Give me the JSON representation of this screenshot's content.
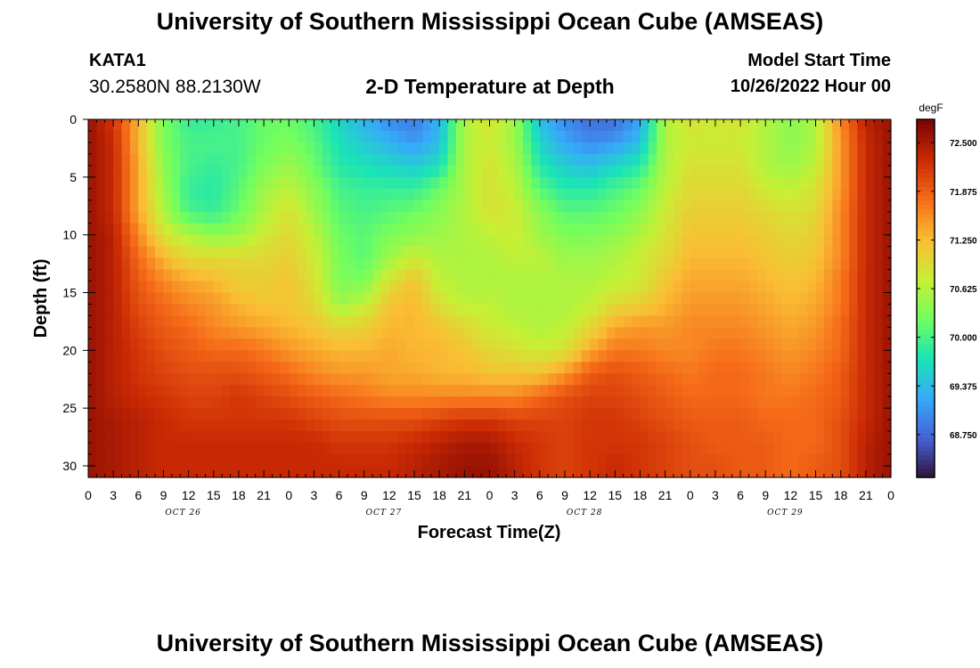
{
  "header": {
    "title": "University of Southern Mississippi Ocean Cube (AMSEAS)",
    "station_id": "KATA1",
    "station_coords": "30.2580N  88.2130W",
    "chart_title": "2-D Temperature at Depth",
    "model_start_label": "Model Start Time",
    "model_start_time": "10/26/2022 Hour 00"
  },
  "footer": {
    "title": "University of Southern Mississippi Ocean Cube (AMSEAS)"
  },
  "chart_data": {
    "type": "heatmap",
    "title": "2-D Temperature at Depth",
    "xlabel": "Forecast Time(Z)",
    "ylabel": "Depth (ft)",
    "colorbar_unit": "degF",
    "xlim": [
      0,
      96
    ],
    "ylim": [
      31,
      0
    ],
    "x_tick_values": [
      0,
      3,
      6,
      9,
      12,
      15,
      18,
      21,
      24,
      27,
      30,
      33,
      36,
      39,
      42,
      45,
      48,
      51,
      54,
      57,
      60,
      63,
      66,
      69,
      72,
      75,
      78,
      81,
      84,
      87,
      90,
      93,
      96
    ],
    "x_tick_labels": [
      "0",
      "3",
      "6",
      "9",
      "12",
      "15",
      "18",
      "21",
      "0",
      "3",
      "6",
      "9",
      "12",
      "15",
      "18",
      "21",
      "0",
      "3",
      "6",
      "9",
      "12",
      "15",
      "18",
      "21",
      "0",
      "3",
      "6",
      "9",
      "12",
      "15",
      "18",
      "21",
      "0"
    ],
    "day_labels": [
      {
        "label": "OCT 26",
        "hour": 12
      },
      {
        "label": "OCT 27",
        "hour": 36
      },
      {
        "label": "OCT 28",
        "hour": 60
      },
      {
        "label": "OCT 29",
        "hour": 84
      }
    ],
    "y_ticks": [
      0,
      5,
      10,
      15,
      20,
      25,
      30
    ],
    "colorbar_min": 68.2,
    "colorbar_max": 72.8,
    "colorbar_ticks": [
      "72.500",
      "71.875",
      "71.250",
      "70.625",
      "70.000",
      "69.375",
      "68.750"
    ],
    "colorbar_tick_values": [
      72.5,
      71.875,
      71.25,
      70.625,
      70.0,
      69.375,
      68.75
    ],
    "colormap_stops": [
      "#30123b",
      "#4662d7",
      "#36aaf9",
      "#1ae4b6",
      "#72fe5e",
      "#c8ef34",
      "#fabd34",
      "#f66b19",
      "#ca2a04",
      "#7a0403"
    ],
    "depths": [
      0,
      2,
      4,
      6,
      8,
      10,
      12,
      14,
      16,
      18,
      20,
      22,
      24,
      26,
      28,
      30,
      31
    ],
    "hours": [
      0,
      3,
      6,
      9,
      12,
      15,
      18,
      21,
      24,
      27,
      30,
      33,
      36,
      39,
      42,
      45,
      48,
      51,
      54,
      57,
      60,
      63,
      66,
      69,
      72,
      75,
      78,
      81,
      84,
      87,
      90,
      93,
      96
    ],
    "values": [
      [
        72.6,
        72.2,
        71.3,
        70.3,
        69.9,
        69.9,
        70.0,
        70.2,
        70.2,
        70.0,
        69.6,
        69.3,
        69.0,
        68.9,
        69.3,
        70.6,
        70.9,
        70.5,
        69.4,
        69.0,
        68.8,
        68.8,
        69.2,
        70.6,
        70.9,
        70.8,
        70.9,
        70.6,
        70.4,
        70.6,
        71.6,
        72.4,
        72.6
      ],
      [
        72.6,
        72.3,
        71.3,
        70.3,
        70.0,
        70.0,
        70.0,
        70.2,
        70.3,
        70.1,
        69.7,
        69.5,
        69.3,
        69.1,
        69.4,
        70.6,
        70.8,
        70.5,
        69.6,
        69.2,
        69.0,
        69.1,
        69.4,
        70.6,
        70.8,
        70.8,
        70.8,
        70.6,
        70.4,
        70.6,
        71.5,
        72.3,
        72.6
      ],
      [
        72.6,
        72.3,
        71.4,
        70.4,
        70.0,
        69.9,
        70.0,
        70.3,
        70.5,
        70.2,
        69.8,
        69.7,
        69.6,
        69.5,
        69.7,
        70.6,
        70.9,
        70.6,
        69.8,
        69.5,
        69.4,
        69.6,
        69.8,
        70.6,
        70.9,
        70.9,
        70.9,
        70.6,
        70.5,
        70.7,
        71.5,
        72.3,
        72.6
      ],
      [
        72.6,
        72.3,
        71.4,
        70.5,
        69.9,
        69.8,
        70.1,
        70.5,
        70.7,
        70.4,
        70.0,
        69.9,
        69.9,
        69.9,
        70.2,
        70.6,
        70.9,
        70.7,
        70.1,
        69.8,
        69.8,
        70.0,
        70.2,
        70.7,
        71.0,
        71.0,
        71.0,
        70.8,
        70.7,
        70.9,
        71.5,
        72.3,
        72.6
      ],
      [
        72.6,
        72.3,
        71.4,
        70.6,
        70.0,
        69.9,
        70.2,
        70.6,
        70.9,
        70.5,
        70.1,
        70.0,
        70.1,
        70.2,
        70.4,
        70.6,
        70.9,
        70.8,
        70.4,
        70.1,
        70.1,
        70.2,
        70.4,
        70.8,
        71.1,
        71.1,
        71.1,
        71.0,
        70.9,
        71.0,
        71.6,
        72.3,
        72.6
      ],
      [
        72.6,
        72.4,
        71.6,
        70.9,
        70.6,
        70.4,
        70.5,
        70.8,
        71.0,
        70.7,
        70.2,
        70.1,
        70.3,
        70.4,
        70.5,
        70.6,
        70.7,
        70.8,
        70.5,
        70.3,
        70.3,
        70.4,
        70.6,
        70.9,
        71.2,
        71.2,
        71.2,
        71.1,
        71.0,
        71.1,
        71.6,
        72.3,
        72.6
      ],
      [
        72.6,
        72.4,
        71.8,
        71.3,
        71.0,
        71.0,
        71.0,
        71.0,
        71.1,
        70.8,
        70.3,
        70.1,
        70.5,
        70.8,
        70.6,
        70.6,
        70.6,
        70.7,
        70.7,
        70.5,
        70.5,
        70.6,
        70.8,
        71.0,
        71.3,
        71.3,
        71.3,
        71.2,
        71.1,
        71.2,
        71.6,
        72.3,
        72.6
      ],
      [
        72.6,
        72.4,
        71.9,
        71.6,
        71.4,
        71.3,
        71.1,
        71.1,
        71.2,
        70.9,
        70.3,
        70.3,
        70.9,
        71.2,
        70.7,
        70.6,
        70.6,
        70.6,
        70.6,
        70.6,
        70.6,
        70.7,
        70.8,
        71.2,
        71.4,
        71.4,
        71.4,
        71.3,
        71.2,
        71.3,
        71.7,
        72.3,
        72.6
      ],
      [
        72.6,
        72.4,
        72.0,
        71.8,
        71.6,
        71.5,
        71.3,
        71.2,
        71.2,
        71.0,
        70.5,
        70.7,
        71.2,
        71.3,
        70.9,
        70.7,
        70.7,
        70.6,
        70.6,
        70.6,
        70.7,
        71.0,
        71.1,
        71.3,
        71.5,
        71.5,
        71.5,
        71.4,
        71.3,
        71.4,
        71.7,
        72.3,
        72.6
      ],
      [
        72.6,
        72.4,
        72.1,
        71.9,
        71.8,
        71.6,
        71.5,
        71.4,
        71.3,
        71.2,
        71.0,
        71.1,
        71.3,
        71.3,
        71.2,
        71.0,
        70.8,
        70.7,
        70.6,
        70.7,
        71.0,
        71.4,
        71.5,
        71.5,
        71.6,
        71.6,
        71.6,
        71.5,
        71.4,
        71.5,
        71.8,
        72.3,
        72.6
      ],
      [
        72.6,
        72.4,
        72.2,
        72.0,
        71.9,
        71.8,
        71.8,
        71.7,
        71.5,
        71.4,
        71.3,
        71.3,
        71.4,
        71.3,
        71.3,
        71.2,
        71.0,
        70.9,
        70.8,
        70.9,
        71.4,
        71.7,
        71.7,
        71.6,
        71.6,
        71.7,
        71.7,
        71.6,
        71.5,
        71.6,
        71.8,
        72.3,
        72.6
      ],
      [
        72.6,
        72.4,
        72.2,
        72.1,
        72.0,
        72.0,
        72.0,
        71.9,
        71.8,
        71.6,
        71.5,
        71.5,
        71.4,
        71.4,
        71.3,
        71.3,
        71.2,
        71.2,
        71.2,
        71.5,
        71.9,
        72.0,
        71.9,
        71.8,
        71.7,
        71.8,
        71.8,
        71.7,
        71.6,
        71.7,
        71.9,
        72.3,
        72.6
      ],
      [
        72.6,
        72.4,
        72.3,
        72.2,
        72.1,
        72.1,
        72.2,
        72.1,
        72.0,
        71.9,
        71.8,
        71.7,
        71.6,
        71.6,
        71.6,
        71.6,
        71.6,
        71.6,
        71.8,
        72.0,
        72.1,
        72.1,
        72.0,
        71.9,
        71.8,
        71.8,
        71.8,
        71.7,
        71.7,
        71.8,
        71.9,
        72.3,
        72.6
      ],
      [
        72.6,
        72.5,
        72.4,
        72.3,
        72.2,
        72.2,
        72.2,
        72.2,
        72.2,
        72.1,
        72.0,
        72.0,
        72.0,
        72.0,
        72.1,
        72.2,
        72.2,
        72.1,
        72.1,
        72.1,
        72.2,
        72.2,
        72.1,
        72.0,
        71.9,
        71.9,
        71.9,
        71.8,
        71.8,
        71.8,
        72.0,
        72.3,
        72.6
      ],
      [
        72.6,
        72.5,
        72.4,
        72.3,
        72.3,
        72.3,
        72.3,
        72.3,
        72.3,
        72.3,
        72.2,
        72.2,
        72.2,
        72.3,
        72.4,
        72.5,
        72.5,
        72.3,
        72.2,
        72.1,
        72.2,
        72.2,
        72.2,
        72.1,
        72.0,
        71.9,
        71.9,
        71.9,
        71.8,
        71.8,
        72.0,
        72.4,
        72.6
      ],
      [
        72.6,
        72.5,
        72.4,
        72.3,
        72.3,
        72.3,
        72.3,
        72.3,
        72.3,
        72.3,
        72.3,
        72.3,
        72.3,
        72.4,
        72.5,
        72.6,
        72.6,
        72.4,
        72.2,
        72.1,
        72.2,
        72.3,
        72.2,
        72.1,
        72.0,
        72.0,
        71.9,
        71.9,
        71.8,
        71.9,
        72.0,
        72.4,
        72.6
      ],
      [
        72.6,
        72.5,
        72.4,
        72.3,
        72.3,
        72.3,
        72.3,
        72.3,
        72.3,
        72.3,
        72.3,
        72.3,
        72.3,
        72.4,
        72.5,
        72.6,
        72.6,
        72.4,
        72.2,
        72.1,
        72.2,
        72.3,
        72.2,
        72.1,
        72.0,
        72.0,
        71.9,
        71.9,
        71.8,
        71.9,
        72.0,
        72.4,
        72.6
      ]
    ]
  }
}
